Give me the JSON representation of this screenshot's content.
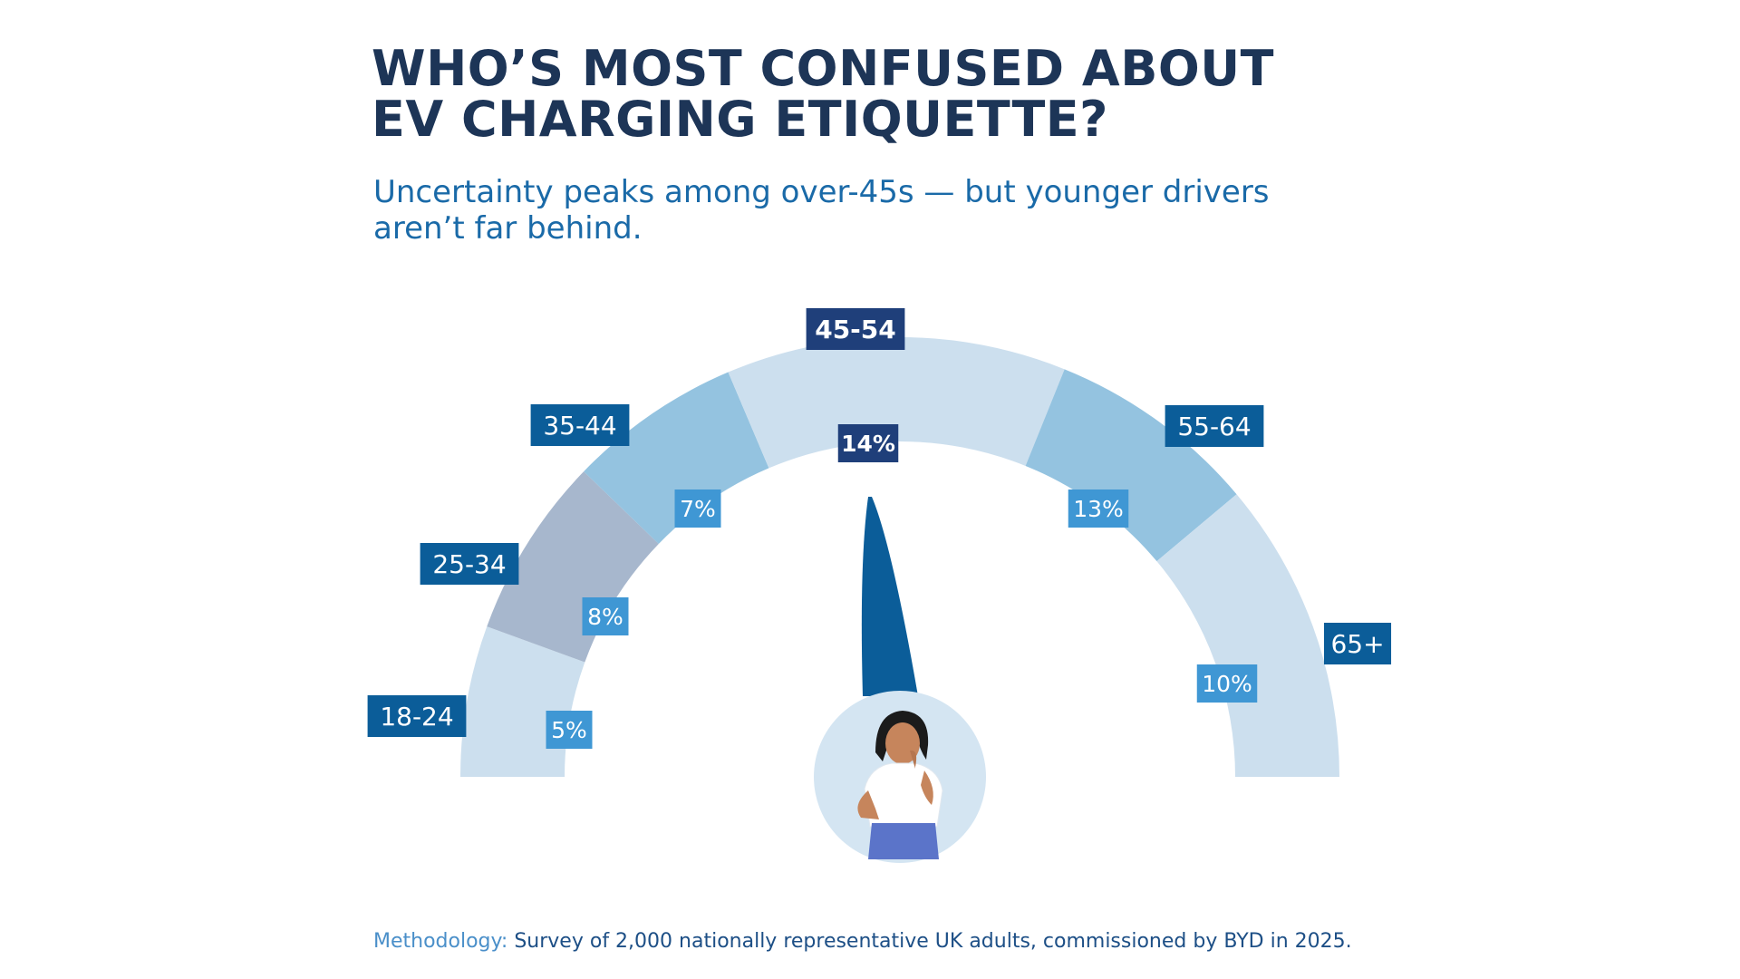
{
  "title_line1": "WHO’S MOST CONFUSED ABOUT",
  "title_line2": "EV CHARGING ETIQUETTE?",
  "subtitle_line1": "Uncertainty peaks among over-45s — but younger drivers",
  "subtitle_line2": "aren’t far behind.",
  "methodology": {
    "label": "Methodology:",
    "text": " Survey of 2,000 nationally representative UK adults, commissioned by BYD in 2025."
  },
  "chart_data": {
    "type": "gauge",
    "categories": [
      "18-24",
      "25-34",
      "35-44",
      "45-54",
      "55-64",
      "65+"
    ],
    "values": [
      5,
      8,
      7,
      14,
      13,
      10
    ],
    "value_labels": [
      "5%",
      "8%",
      "7%",
      "14%",
      "13%",
      "10%"
    ],
    "unit": "%",
    "highlight_category": "45-54",
    "colors": {
      "segments": [
        "#ccdfee",
        "#a7b7cd",
        "#94c3e0",
        "#ccdfee",
        "#94c3e0",
        "#ccdfee"
      ],
      "category_label_bg": "#0b5d99",
      "highlight_label_bg": "#1f3f7a",
      "value_label_bg": "#3f97d4",
      "highlight_value_bg": "#1f3f7a",
      "needle": "#0b5d99",
      "person_circle": "#d4e5f2"
    }
  }
}
